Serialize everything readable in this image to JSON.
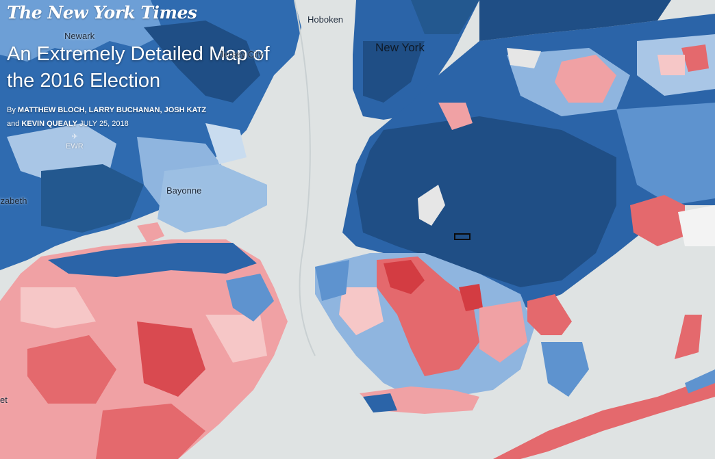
{
  "brand": {
    "logo": "The New York Times"
  },
  "article": {
    "headline": "An Extremely Detailed Map of the 2016 Election",
    "byline_prefix": "By",
    "authors_line1": "MATTHEW BLOCH, LARRY BUCHANAN, JOSH KATZ",
    "authors_line2_prefix": "and",
    "authors_line2": "KEVIN QUEALY",
    "date": "JULY 25, 2018"
  },
  "map": {
    "colors": {
      "water": "#dfe3e3",
      "dem_strongest": "#1f4e85",
      "dem_strong": "#2b64a8",
      "dem_medium": "#3f7ec2",
      "dem_light": "#8fb5df",
      "dem_lightest": "#c9dcef",
      "rep_lightest": "#f6c7c7",
      "rep_light": "#f0a1a4",
      "rep_medium": "#e4696d",
      "rep_strong": "#d33c42",
      "park": "#e6e6e6"
    },
    "places": {
      "hoboken": "Hoboken",
      "newark": "Newark",
      "jersey_city": "Jersey City",
      "new_york": "New York",
      "ewr": "EWR",
      "bayonne": "Bayonne",
      "elizabeth": "Elizabeth",
      "edge_label": "et"
    },
    "icons": {
      "airport": "plane-icon",
      "selection": "selected-precinct-outline"
    }
  }
}
